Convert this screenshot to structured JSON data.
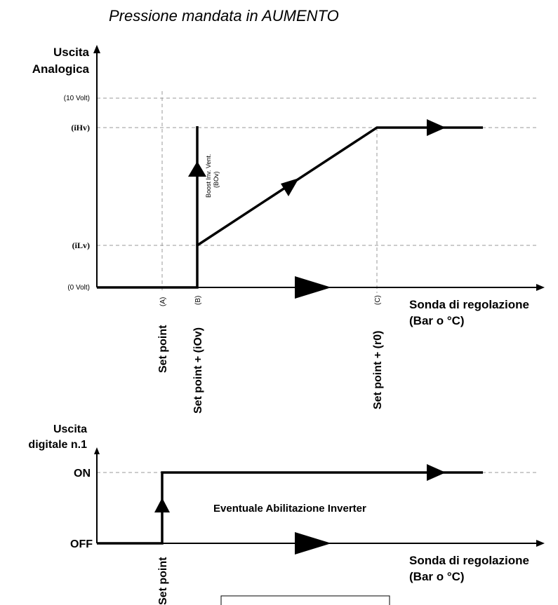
{
  "title": "Pressione mandata in AUMENTO",
  "top_chart": {
    "y_axis_label_1": "Uscita",
    "y_axis_label_2": "Analogica",
    "y_levels": [
      "(10 Volt)",
      "(iHv)",
      "(iLv)",
      "(0 Volt)"
    ],
    "x_axis_label_1": "Sonda di regolazione",
    "x_axis_label_2": "(Bar o °C)",
    "x_points": [
      {
        "label": "Set point",
        "tag": "(A)"
      },
      {
        "label": "Set point + (iOv)",
        "tag": "(B)"
      },
      {
        "label": "Set point + (r0)",
        "tag": "(C)"
      }
    ],
    "boost_label_1": "Boost Inv. Vent.",
    "boost_label_2": "(BOv)"
  },
  "bottom_chart": {
    "y_axis_label_1": "Uscita",
    "y_axis_label_2": "digitale n.1",
    "y_levels": [
      "ON",
      "OFF"
    ],
    "x_axis_label_1": "Sonda di regolazione",
    "x_axis_label_2": "(Bar o °C)",
    "x_point_label": "Set point",
    "annotation": "Eventuale Abilitazione Inverter"
  },
  "colors": {
    "line": "#000000",
    "grid": "#9a9a9a",
    "background": "#ffffff"
  }
}
